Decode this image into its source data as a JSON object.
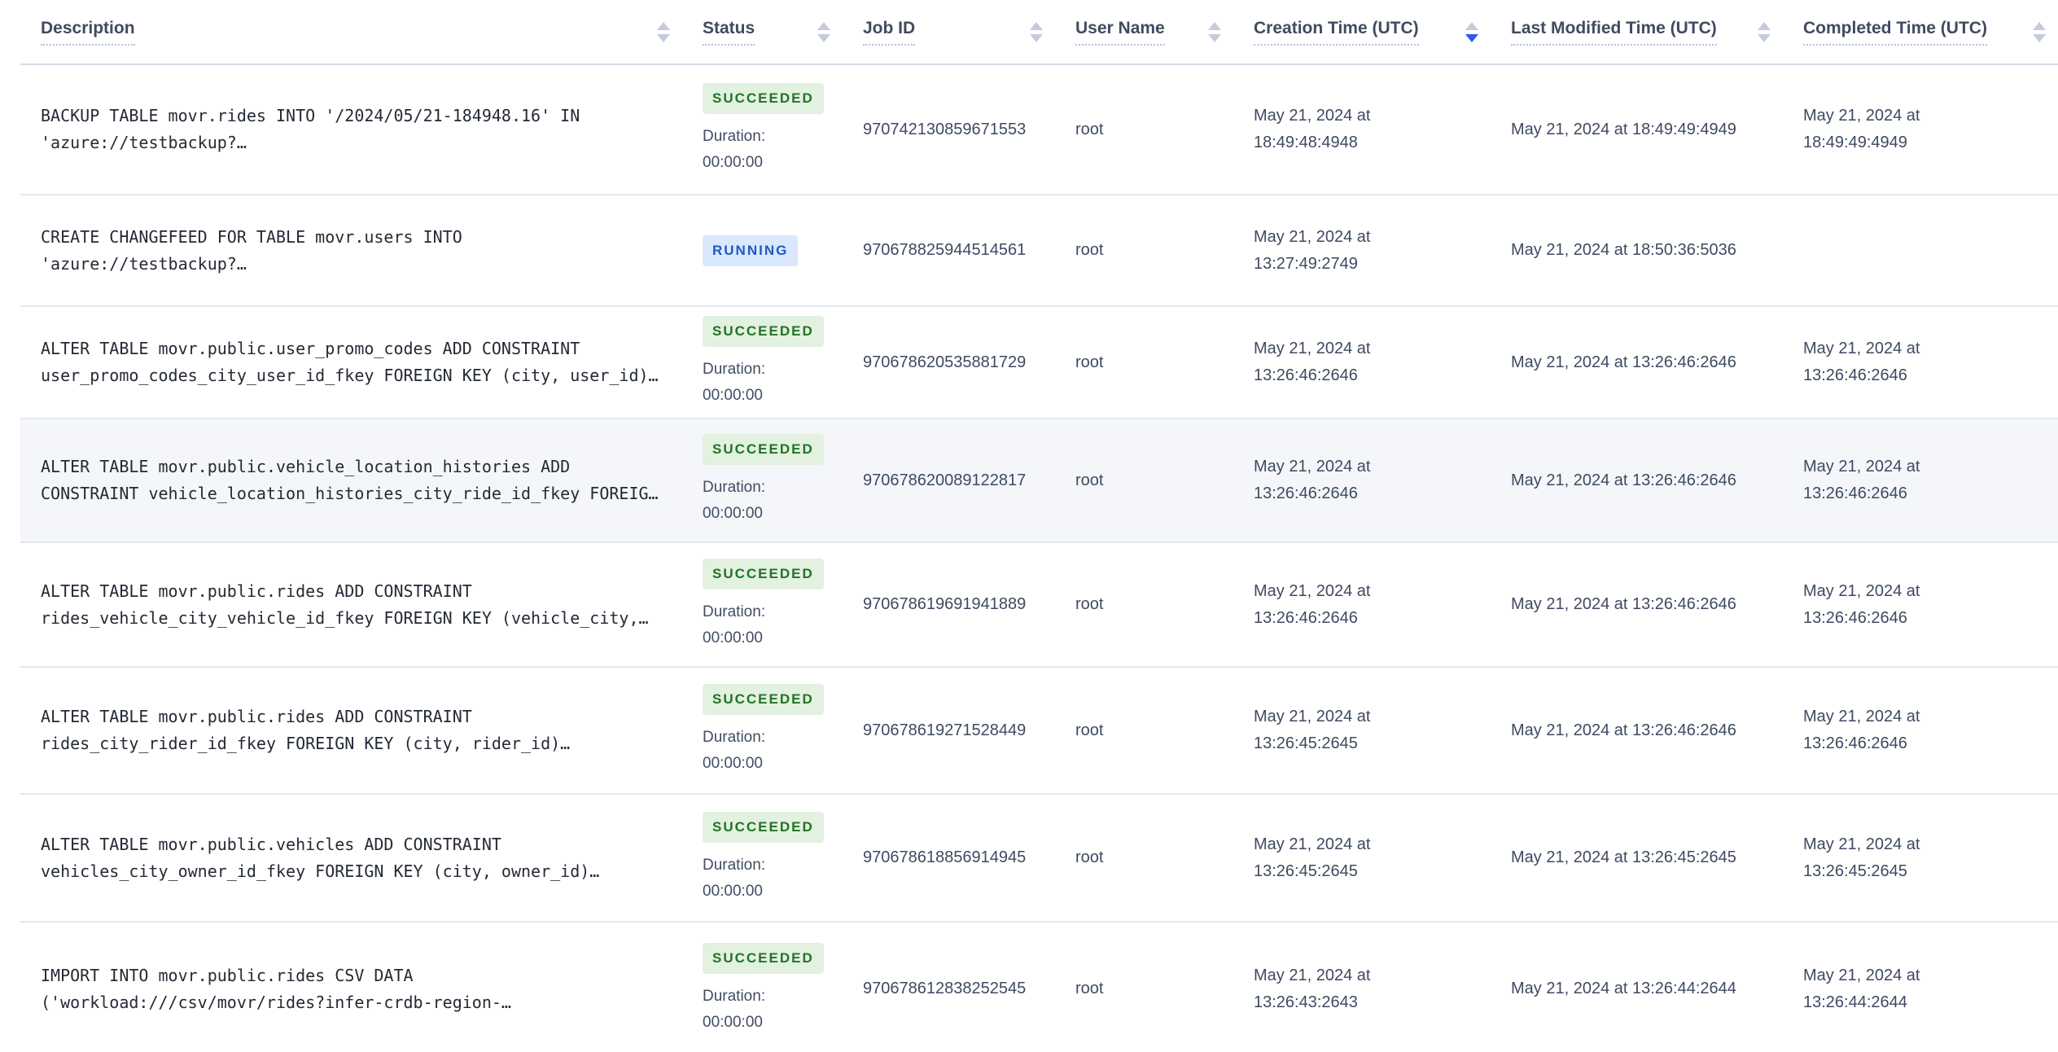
{
  "colors": {
    "succeeded_badge_bg": "#e2f1e0",
    "succeeded_badge_text": "#237326",
    "running_badge_bg": "#d9e8fc",
    "running_badge_text": "#2158c4",
    "active_sort_arrow": "#2e5af0",
    "inactive_sort_arrow": "#c4ccdb",
    "row_highlight_bg": "#f4f6f9"
  },
  "header": {
    "columns": [
      {
        "label": "Description",
        "sort": "none"
      },
      {
        "label": "Status",
        "sort": "none"
      },
      {
        "label": "Job ID",
        "sort": "none"
      },
      {
        "label": "User Name",
        "sort": "none"
      },
      {
        "label": "Creation Time (UTC)",
        "sort": "desc"
      },
      {
        "label": "Last Modified Time (UTC)",
        "sort": "none"
      },
      {
        "label": "Completed Time (UTC)",
        "sort": "none"
      }
    ]
  },
  "rows": [
    {
      "desc1": "BACKUP TABLE movr.rides INTO '/2024/05/21-184948.16' IN",
      "desc2": "'azure://testbackup?…",
      "status": "SUCCEEDED",
      "duration_label": "Duration:",
      "duration": "00:00:00",
      "job_id": "970742130859671553",
      "user": "root",
      "created1": "May 21, 2024 at",
      "created2": "18:49:48:4948",
      "modified": "May 21, 2024 at 18:49:49:4949",
      "completed1": "May 21, 2024 at",
      "completed2": "18:49:49:4949"
    },
    {
      "desc1": "CREATE CHANGEFEED FOR TABLE movr.users INTO",
      "desc2": "'azure://testbackup?…",
      "status": "RUNNING",
      "duration_label": "",
      "duration": "",
      "job_id": "970678825944514561",
      "user": "root",
      "created1": "May 21, 2024 at",
      "created2": "13:27:49:2749",
      "modified": "May 21, 2024 at 18:50:36:5036",
      "completed1": "",
      "completed2": ""
    },
    {
      "desc1": "ALTER TABLE movr.public.user_promo_codes ADD CONSTRAINT",
      "desc2": "user_promo_codes_city_user_id_fkey FOREIGN KEY (city, user_id)…",
      "status": "SUCCEEDED",
      "duration_label": "Duration:",
      "duration": "00:00:00",
      "job_id": "970678620535881729",
      "user": "root",
      "created1": "May 21, 2024 at",
      "created2": "13:26:46:2646",
      "modified": "May 21, 2024 at 13:26:46:2646",
      "completed1": "May 21, 2024 at",
      "completed2": "13:26:46:2646"
    },
    {
      "desc1": "ALTER TABLE movr.public.vehicle_location_histories ADD",
      "desc2": "CONSTRAINT vehicle_location_histories_city_ride_id_fkey FOREIG…",
      "status": "SUCCEEDED",
      "duration_label": "Duration:",
      "duration": "00:00:00",
      "job_id": "970678620089122817",
      "user": "root",
      "created1": "May 21, 2024 at",
      "created2": "13:26:46:2646",
      "modified": "May 21, 2024 at 13:26:46:2646",
      "completed1": "May 21, 2024 at",
      "completed2": "13:26:46:2646",
      "highlighted": true
    },
    {
      "desc1": "ALTER TABLE movr.public.rides ADD CONSTRAINT",
      "desc2": "rides_vehicle_city_vehicle_id_fkey FOREIGN KEY (vehicle_city,…",
      "status": "SUCCEEDED",
      "duration_label": "Duration:",
      "duration": "00:00:00",
      "job_id": "970678619691941889",
      "user": "root",
      "created1": "May 21, 2024 at",
      "created2": "13:26:46:2646",
      "modified": "May 21, 2024 at 13:26:46:2646",
      "completed1": "May 21, 2024 at",
      "completed2": "13:26:46:2646"
    },
    {
      "desc1": "ALTER TABLE movr.public.rides ADD CONSTRAINT",
      "desc2": "rides_city_rider_id_fkey FOREIGN KEY (city, rider_id)…",
      "status": "SUCCEEDED",
      "duration_label": "Duration:",
      "duration": "00:00:00",
      "job_id": "970678619271528449",
      "user": "root",
      "created1": "May 21, 2024 at",
      "created2": "13:26:45:2645",
      "modified": "May 21, 2024 at 13:26:46:2646",
      "completed1": "May 21, 2024 at",
      "completed2": "13:26:46:2646"
    },
    {
      "desc1": "ALTER TABLE movr.public.vehicles ADD CONSTRAINT",
      "desc2": "vehicles_city_owner_id_fkey FOREIGN KEY (city, owner_id)…",
      "status": "SUCCEEDED",
      "duration_label": "Duration:",
      "duration": "00:00:00",
      "job_id": "970678618856914945",
      "user": "root",
      "created1": "May 21, 2024 at",
      "created2": "13:26:45:2645",
      "modified": "May 21, 2024 at 13:26:45:2645",
      "completed1": "May 21, 2024 at",
      "completed2": "13:26:45:2645"
    },
    {
      "desc1": "IMPORT INTO movr.public.rides CSV DATA",
      "desc2": "('workload:///csv/movr/rides?infer-crdb-region-…",
      "status": "SUCCEEDED",
      "duration_label": "Duration:",
      "duration": "00:00:00",
      "job_id": "970678612838252545",
      "user": "root",
      "created1": "May 21, 2024 at",
      "created2": "13:26:43:2643",
      "modified": "May 21, 2024 at 13:26:44:2644",
      "completed1": "May 21, 2024 at",
      "completed2": "13:26:44:2644"
    }
  ]
}
